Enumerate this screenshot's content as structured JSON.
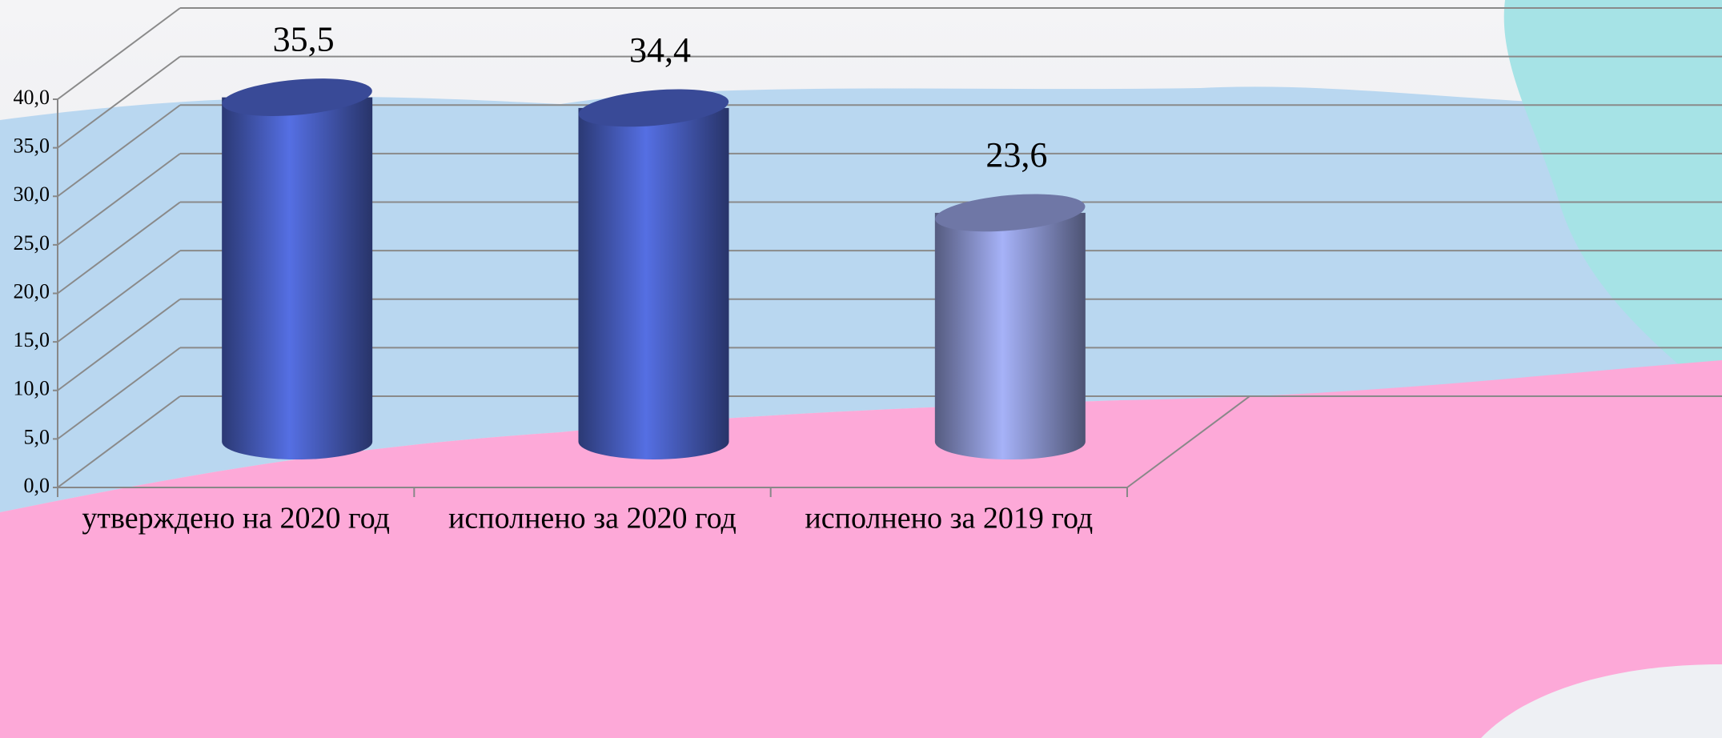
{
  "chart_data": {
    "type": "cylinder",
    "categories": [
      "утверждено на 2020 год",
      "исполнено за 2020 год",
      "исполнено за 2019 год"
    ],
    "values": [
      35.5,
      34.4,
      23.6
    ],
    "value_labels": [
      "35,5",
      "34,4",
      "23,6"
    ],
    "colors": [
      "#4f67d2",
      "#4f67d2",
      "#9aa5e6"
    ],
    "ylim": [
      0,
      40
    ],
    "yticks": [
      {
        "value": 0,
        "label": "0,0"
      },
      {
        "value": 5,
        "label": "5,0"
      },
      {
        "value": 10,
        "label": "10,0"
      },
      {
        "value": 15,
        "label": "15,0"
      },
      {
        "value": 20,
        "label": "20,0"
      },
      {
        "value": 25,
        "label": "25,0"
      },
      {
        "value": 30,
        "label": "30,0"
      },
      {
        "value": 35,
        "label": "35,0"
      },
      {
        "value": 40,
        "label": "40,0"
      }
    ],
    "grid": true
  }
}
